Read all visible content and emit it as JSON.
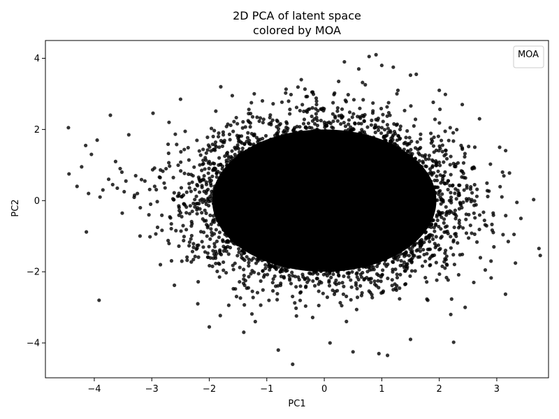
{
  "chart_data": {
    "type": "scatter",
    "title": "2D PCA of latent space",
    "subtitle": "colored by MOA",
    "xlabel": "PC1",
    "ylabel": "PC2",
    "xlim": [
      -4.85,
      3.9
    ],
    "ylim": [
      -4.98,
      4.5
    ],
    "xticks": [
      -4,
      -3,
      -2,
      -1,
      0,
      1,
      2,
      3
    ],
    "yticks": [
      -4,
      -2,
      0,
      2,
      4
    ],
    "xtick_labels": [
      "−4",
      "−3",
      "−2",
      "−1",
      "0",
      "1",
      "2",
      "3"
    ],
    "ytick_labels": [
      "−4",
      "−2",
      "0",
      "2",
      "4"
    ],
    "grid": false,
    "legend": {
      "title": "MOA",
      "placement": "top-right",
      "entries": []
    },
    "point_color": "#000000",
    "point_alpha": 0.8,
    "dense_core": {
      "center": [
        0.0,
        0.0
      ],
      "std": [
        1.0,
        1.0
      ],
      "note_shape": "filled ellipse"
    },
    "series": [
      {
        "x": [
          -4.45,
          -4.44,
          -4.15,
          -4.22,
          -4.05,
          -3.95,
          -3.72,
          -3.63,
          -3.55,
          -3.52,
          -3.4,
          -3.28,
          -3.12,
          -2.95,
          -3.85,
          -3.75,
          -3.6,
          -3.48,
          -3.3,
          -3.2,
          -3.05,
          -2.9,
          -4.3,
          -4.1,
          -3.9,
          -3.68,
          -3.45,
          -3.25,
          -3.02,
          2.25,
          3.42,
          3.3,
          3.2,
          3.35,
          2.95,
          2.6,
          2.4,
          -0.55,
          0.35,
          0.78,
          0.9,
          1.0,
          1.2,
          0.25,
          -0.2,
          0.95,
          2.2,
          1.5,
          -0.8,
          0.5,
          1.8,
          2.8,
          3.1,
          3.05,
          2.9,
          2.7,
          -2.5,
          -2.7,
          -2.85,
          -2.2,
          -2.0,
          -1.8,
          -1.6,
          -1.4,
          -1.2,
          -0.4,
          0.1,
          0.6,
          1.1,
          1.6,
          2.0,
          2.45
        ],
        "y": [
          2.05,
          0.75,
          1.55,
          0.95,
          1.3,
          1.7,
          2.4,
          1.1,
          0.9,
          0.8,
          1.85,
          0.7,
          0.55,
          0.4,
          0.3,
          0.6,
          0.35,
          0.25,
          0.15,
          -0.2,
          -0.4,
          -0.75,
          0.4,
          0.2,
          0.1,
          0.45,
          0.55,
          0.2,
          -0.1,
          -3.98,
          -0.5,
          -0.95,
          -1.15,
          -0.05,
          -1.3,
          -2.3,
          2.7,
          -4.6,
          3.9,
          4.05,
          4.1,
          3.8,
          3.75,
          3.35,
          3.05,
          -4.3,
          -3.2,
          -3.9,
          -4.2,
          -4.25,
          -2.8,
          -1.95,
          0.8,
          1.5,
          -1.7,
          2.3,
          2.85,
          2.2,
          -1.8,
          -2.9,
          -3.55,
          3.2,
          2.95,
          -3.7,
          -3.4,
          3.4,
          -4.0,
          3.7,
          -4.35,
          3.55,
          3.1,
          -3.0
        ]
      }
    ]
  }
}
